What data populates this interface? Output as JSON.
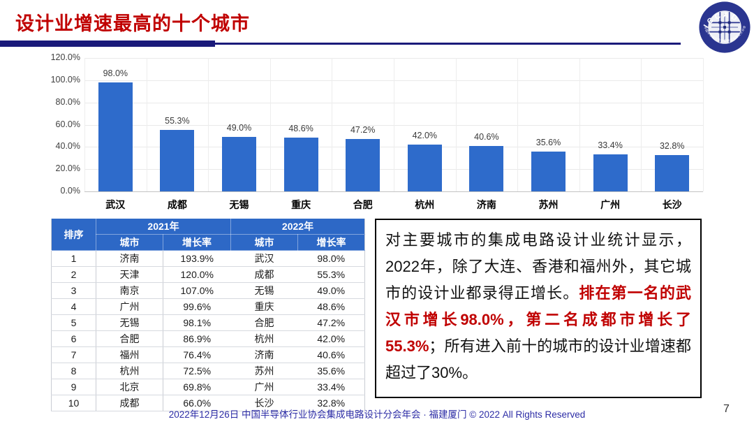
{
  "slide": {
    "title": "设计业增速最高的十个城市",
    "footer": "2022年12月26日 中国半导体行业协会集成电路设计分会年会 · 福建厦门 © 2022 All Rights Reserved",
    "page_number": "7",
    "title_color": "#C00000",
    "divider_color": "#1A1A7A"
  },
  "logo": {
    "arc_text": "ICCAD",
    "ring_text": "中国半导体行业协会集成电路设计分会",
    "ring_color": "#2A3590"
  },
  "chart_data": {
    "type": "bar",
    "title": "",
    "xlabel": "",
    "ylabel": "",
    "categories": [
      "武汉",
      "成都",
      "无锡",
      "重庆",
      "合肥",
      "杭州",
      "济南",
      "苏州",
      "广州",
      "长沙"
    ],
    "values": [
      98.0,
      55.3,
      49.0,
      48.6,
      47.2,
      42.0,
      40.6,
      35.6,
      33.4,
      32.8
    ],
    "value_labels": [
      "98.0%",
      "55.3%",
      "49.0%",
      "48.6%",
      "47.2%",
      "42.0%",
      "40.6%",
      "35.6%",
      "33.4%",
      "32.8%"
    ],
    "y_ticks": [
      "0.0%",
      "20.0%",
      "40.0%",
      "60.0%",
      "80.0%",
      "100.0%",
      "120.0%"
    ],
    "ylim": [
      0,
      120
    ],
    "grid": true,
    "legend": "none",
    "bar_color": "#2E6BCB"
  },
  "table": {
    "header_bg": "#2D68C6",
    "rank_header": "排序",
    "group_headers": [
      "2021年",
      "2022年"
    ],
    "sub_headers": [
      "城市",
      "增长率",
      "城市",
      "增长率"
    ],
    "rows": [
      [
        "1",
        "济南",
        "193.9%",
        "武汉",
        "98.0%"
      ],
      [
        "2",
        "天津",
        "120.0%",
        "成都",
        "55.3%"
      ],
      [
        "3",
        "南京",
        "107.0%",
        "无锡",
        "49.0%"
      ],
      [
        "4",
        "广州",
        "99.6%",
        "重庆",
        "48.6%"
      ],
      [
        "5",
        "无锡",
        "98.1%",
        "合肥",
        "47.2%"
      ],
      [
        "6",
        "合肥",
        "86.9%",
        "杭州",
        "42.0%"
      ],
      [
        "7",
        "福州",
        "76.4%",
        "济南",
        "40.6%"
      ],
      [
        "8",
        "杭州",
        "72.5%",
        "苏州",
        "35.6%"
      ],
      [
        "9",
        "北京",
        "69.8%",
        "广州",
        "33.4%"
      ],
      [
        "10",
        "成都",
        "66.0%",
        "长沙",
        "32.8%"
      ]
    ]
  },
  "commentary": {
    "part1": "对主要城市的集成电路设计业统计显示，2022年，除了大连、香港和福州外，其它城市的设计业都录得正增长。",
    "highlight": "排在第一名的武汉市增长98.0%，第二名成都市增长了55.3%",
    "part2": "；所有进入前十的城市的设计业增速都超过了30%。"
  }
}
